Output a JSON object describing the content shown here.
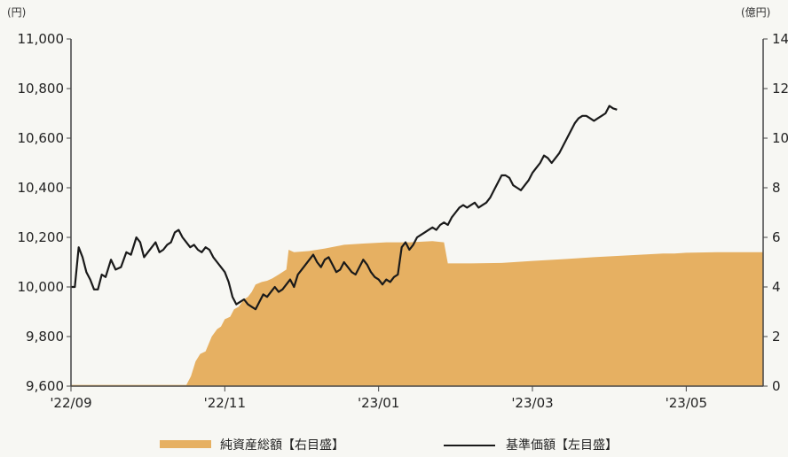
{
  "chart_data": {
    "type": "line",
    "left_axis_unit": "(円)",
    "right_axis_unit": "(億円)",
    "y_left_ticks": [
      "9,600",
      "9,800",
      "10,000",
      "10,200",
      "10,400",
      "10,600",
      "10,800",
      "11,000"
    ],
    "y_left_ylim": [
      9600,
      11000
    ],
    "y_right_ticks": [
      "0",
      "2",
      "4",
      "6",
      "8",
      "10",
      "12",
      "14"
    ],
    "y_right_ylim": [
      0,
      14
    ],
    "x_ticks": [
      "'22/09",
      "'22/11",
      "'23/01",
      "'23/03",
      "'23/05"
    ],
    "grid": false,
    "legend_position": "bottom",
    "colors": {
      "area": "#e6b062",
      "line": "#1a1a1a",
      "axis": "#444444",
      "background": "#f7f7f3"
    },
    "series": [
      {
        "name": "純資産総額【右目盛】",
        "type": "area",
        "axis": "right",
        "points": [
          [
            0,
            0.05
          ],
          [
            1.5,
            0.05
          ],
          [
            1.56,
            0.4
          ],
          [
            1.62,
            1.0
          ],
          [
            1.68,
            1.3
          ],
          [
            1.75,
            1.4
          ],
          [
            1.83,
            2.0
          ],
          [
            1.9,
            2.3
          ],
          [
            1.95,
            2.4
          ],
          [
            2.0,
            2.7
          ],
          [
            2.07,
            2.8
          ],
          [
            2.12,
            3.1
          ],
          [
            2.18,
            3.2
          ],
          [
            2.25,
            3.5
          ],
          [
            2.3,
            3.6
          ],
          [
            2.35,
            3.8
          ],
          [
            2.4,
            4.1
          ],
          [
            2.48,
            4.2
          ],
          [
            2.55,
            4.25
          ],
          [
            2.62,
            4.35
          ],
          [
            2.7,
            4.5
          ],
          [
            2.8,
            4.7
          ],
          [
            2.83,
            5.5
          ],
          [
            2.9,
            5.4
          ],
          [
            3.1,
            5.45
          ],
          [
            3.3,
            5.55
          ],
          [
            3.55,
            5.7
          ],
          [
            3.8,
            5.75
          ],
          [
            4.1,
            5.8
          ],
          [
            4.4,
            5.8
          ],
          [
            4.7,
            5.85
          ],
          [
            4.85,
            5.8
          ],
          [
            4.9,
            4.95
          ],
          [
            5.2,
            4.95
          ],
          [
            5.6,
            4.97
          ],
          [
            6.0,
            5.05
          ],
          [
            6.4,
            5.12
          ],
          [
            6.8,
            5.2
          ],
          [
            7.1,
            5.25
          ],
          [
            7.4,
            5.3
          ],
          [
            7.7,
            5.35
          ],
          [
            7.85,
            5.35
          ],
          [
            8.0,
            5.38
          ],
          [
            8.4,
            5.4
          ],
          [
            8.7,
            5.4
          ],
          [
            9.0,
            5.4
          ]
        ]
      },
      {
        "name": "基準価額【左目盛】",
        "type": "line",
        "axis": "left",
        "points": [
          [
            0,
            10000
          ],
          [
            0.05,
            10000
          ],
          [
            0.1,
            10160
          ],
          [
            0.15,
            10120
          ],
          [
            0.2,
            10060
          ],
          [
            0.25,
            10030
          ],
          [
            0.3,
            9990
          ],
          [
            0.35,
            9990
          ],
          [
            0.4,
            10050
          ],
          [
            0.45,
            10040
          ],
          [
            0.52,
            10110
          ],
          [
            0.58,
            10070
          ],
          [
            0.65,
            10080
          ],
          [
            0.72,
            10140
          ],
          [
            0.78,
            10130
          ],
          [
            0.85,
            10200
          ],
          [
            0.9,
            10180
          ],
          [
            0.95,
            10120
          ],
          [
            1.0,
            10140
          ],
          [
            1.05,
            10160
          ],
          [
            1.1,
            10180
          ],
          [
            1.15,
            10140
          ],
          [
            1.2,
            10150
          ],
          [
            1.25,
            10170
          ],
          [
            1.3,
            10180
          ],
          [
            1.35,
            10220
          ],
          [
            1.4,
            10230
          ],
          [
            1.45,
            10200
          ],
          [
            1.5,
            10180
          ],
          [
            1.55,
            10160
          ],
          [
            1.6,
            10170
          ],
          [
            1.65,
            10150
          ],
          [
            1.7,
            10140
          ],
          [
            1.75,
            10160
          ],
          [
            1.8,
            10150
          ],
          [
            1.85,
            10120
          ],
          [
            1.9,
            10100
          ],
          [
            1.95,
            10080
          ],
          [
            2.0,
            10060
          ],
          [
            2.05,
            10020
          ],
          [
            2.1,
            9960
          ],
          [
            2.15,
            9930
          ],
          [
            2.2,
            9940
          ],
          [
            2.25,
            9950
          ],
          [
            2.3,
            9930
          ],
          [
            2.35,
            9920
          ],
          [
            2.4,
            9910
          ],
          [
            2.45,
            9940
          ],
          [
            2.5,
            9970
          ],
          [
            2.55,
            9960
          ],
          [
            2.6,
            9980
          ],
          [
            2.65,
            10000
          ],
          [
            2.7,
            9980
          ],
          [
            2.75,
            9990
          ],
          [
            2.8,
            10010
          ],
          [
            2.85,
            10030
          ],
          [
            2.9,
            10000
          ],
          [
            2.95,
            10050
          ],
          [
            3.0,
            10070
          ],
          [
            3.05,
            10090
          ],
          [
            3.1,
            10110
          ],
          [
            3.15,
            10130
          ],
          [
            3.2,
            10100
          ],
          [
            3.25,
            10080
          ],
          [
            3.3,
            10110
          ],
          [
            3.35,
            10120
          ],
          [
            3.4,
            10090
          ],
          [
            3.45,
            10060
          ],
          [
            3.5,
            10070
          ],
          [
            3.55,
            10100
          ],
          [
            3.6,
            10080
          ],
          [
            3.65,
            10060
          ],
          [
            3.7,
            10050
          ],
          [
            3.75,
            10080
          ],
          [
            3.8,
            10110
          ],
          [
            3.85,
            10090
          ],
          [
            3.9,
            10060
          ],
          [
            3.95,
            10040
          ],
          [
            4.0,
            10030
          ],
          [
            4.05,
            10010
          ],
          [
            4.1,
            10030
          ],
          [
            4.15,
            10020
          ],
          [
            4.2,
            10040
          ],
          [
            4.25,
            10050
          ],
          [
            4.3,
            10160
          ],
          [
            4.35,
            10180
          ],
          [
            4.4,
            10150
          ],
          [
            4.45,
            10170
          ],
          [
            4.5,
            10200
          ],
          [
            4.55,
            10210
          ],
          [
            4.6,
            10220
          ],
          [
            4.65,
            10230
          ],
          [
            4.7,
            10240
          ],
          [
            4.75,
            10230
          ],
          [
            4.8,
            10250
          ],
          [
            4.85,
            10260
          ],
          [
            4.9,
            10250
          ],
          [
            4.95,
            10280
          ],
          [
            5.0,
            10300
          ],
          [
            5.05,
            10320
          ],
          [
            5.1,
            10330
          ],
          [
            5.15,
            10320
          ],
          [
            5.2,
            10330
          ],
          [
            5.25,
            10340
          ],
          [
            5.3,
            10320
          ],
          [
            5.35,
            10330
          ],
          [
            5.4,
            10340
          ],
          [
            5.45,
            10360
          ],
          [
            5.5,
            10390
          ],
          [
            5.55,
            10420
          ],
          [
            5.6,
            10450
          ],
          [
            5.65,
            10450
          ],
          [
            5.7,
            10440
          ],
          [
            5.75,
            10410
          ],
          [
            5.8,
            10400
          ],
          [
            5.85,
            10390
          ],
          [
            5.9,
            10410
          ],
          [
            5.95,
            10430
          ],
          [
            6.0,
            10460
          ],
          [
            6.05,
            10480
          ],
          [
            6.1,
            10500
          ],
          [
            6.15,
            10530
          ],
          [
            6.2,
            10520
          ],
          [
            6.25,
            10500
          ],
          [
            6.3,
            10520
          ],
          [
            6.35,
            10540
          ],
          [
            6.4,
            10570
          ],
          [
            6.45,
            10600
          ],
          [
            6.5,
            10630
          ],
          [
            6.55,
            10660
          ],
          [
            6.6,
            10680
          ],
          [
            6.65,
            10690
          ],
          [
            6.7,
            10690
          ],
          [
            6.75,
            10680
          ],
          [
            6.8,
            10670
          ],
          [
            6.85,
            10680
          ],
          [
            6.9,
            10690
          ],
          [
            6.95,
            10700
          ],
          [
            7.0,
            10730
          ],
          [
            7.05,
            10720
          ],
          [
            7.1,
            10715
          ]
        ]
      }
    ]
  }
}
